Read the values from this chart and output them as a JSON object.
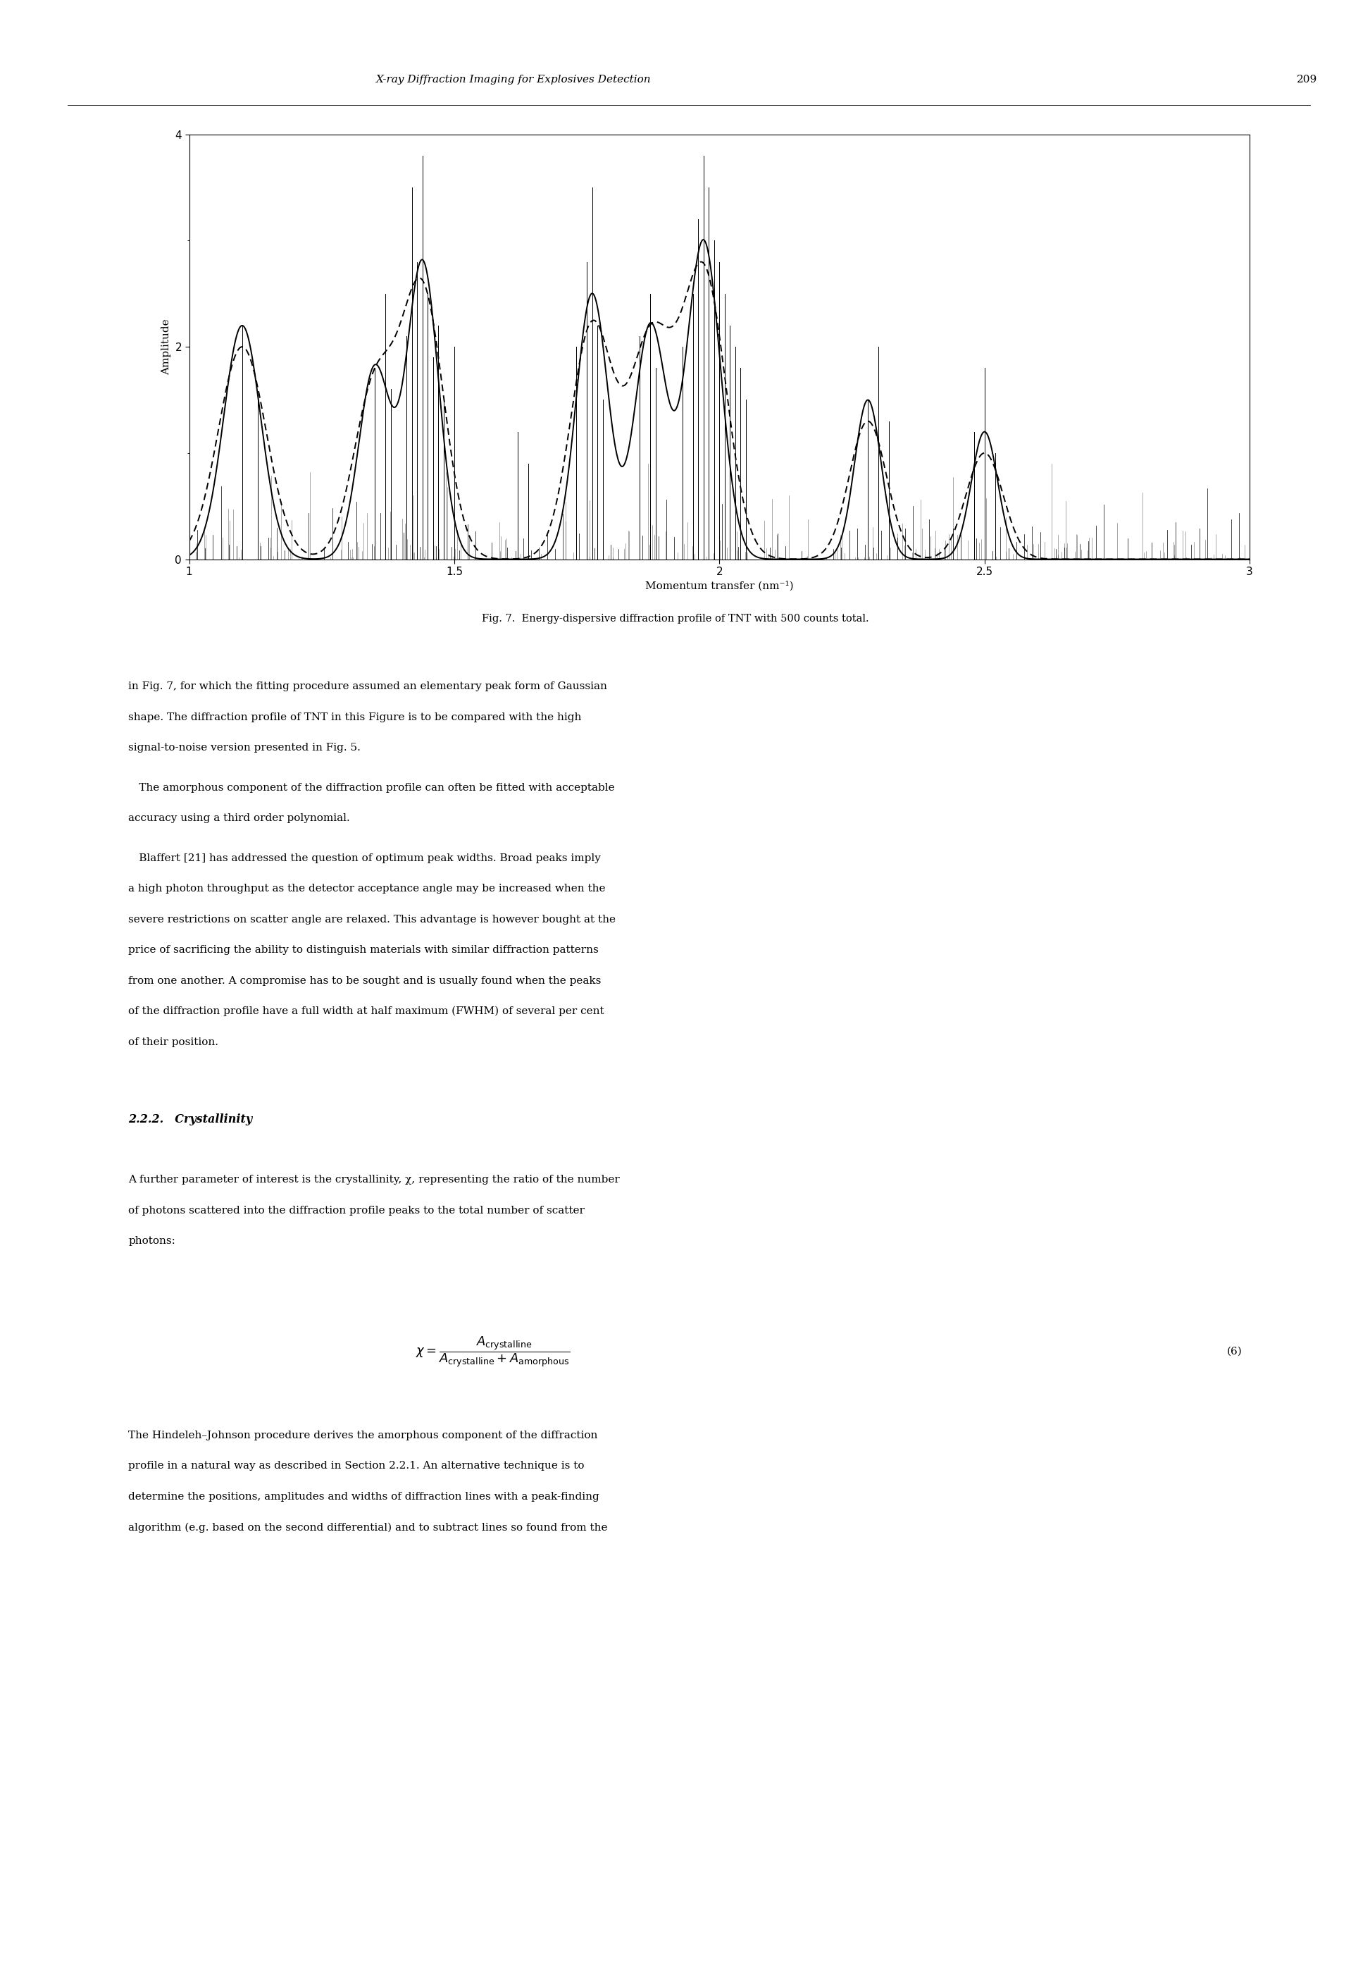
{
  "header_title": "X-ray Diffraction Imaging for Explosives Detection",
  "page_number": "209",
  "fig_caption": "Fig. 7.  Energy-dispersive diffraction profile of TNT with 500 counts total.",
  "xlabel": "Momentum transfer (nm⁻¹)",
  "ylabel": "Amplitude",
  "xlim": [
    1.0,
    3.0
  ],
  "ylim": [
    0,
    4
  ],
  "yticks": [
    0,
    2,
    4
  ],
  "xticks": [
    1.0,
    1.5,
    2.0,
    2.5,
    3.0
  ],
  "xtick_labels": [
    "1",
    "1.5",
    "2",
    "2.5",
    "3"
  ],
  "background_color": "#ffffff",
  "body_text_1_lines": [
    "in Fig. 7, for which the fitting procedure assumed an elementary peak form of Gaussian",
    "shape. The diffraction profile of TNT in this Figure is to be compared with the high",
    "signal-to-noise version presented in Fig. 5."
  ],
  "body_text_2_lines": [
    " The amorphous component of the diffraction profile can often be fitted with acceptable",
    "accuracy using a third order polynomial."
  ],
  "body_text_3_lines": [
    " Blaffert [21] has addressed the question of optimum peak widths. Broad peaks imply",
    "a high photon throughput as the detector acceptance angle may be increased when the",
    "severe restrictions on scatter angle are relaxed. This advantage is however bought at the",
    "price of sacrificing the ability to distinguish materials with similar diffraction patterns",
    "from one another. A compromise has to be sought and is usually found when the peaks",
    "of the diffraction profile have a full width at half maximum (FWHM) of several per cent",
    "of their position."
  ],
  "section_title": "2.2.2. Crystallinity",
  "section_body_1_lines": [
    "A further parameter of interest is the crystallinity, χ, representing the ratio of the number",
    "of photons scattered into the diffraction profile peaks to the total number of scatter",
    "photons:"
  ],
  "eq_label": "(6)",
  "section_body_2_lines": [
    "The Hindeleh–Johnson procedure derives the amorphous component of the diffraction",
    "profile in a natural way as described in Section 2.2.1. An alternative technique is to",
    "determine the positions, amplitudes and widths of diffraction lines with a peak-finding",
    "algorithm (e.g. based on the second differential) and to subtract lines so found from the"
  ]
}
